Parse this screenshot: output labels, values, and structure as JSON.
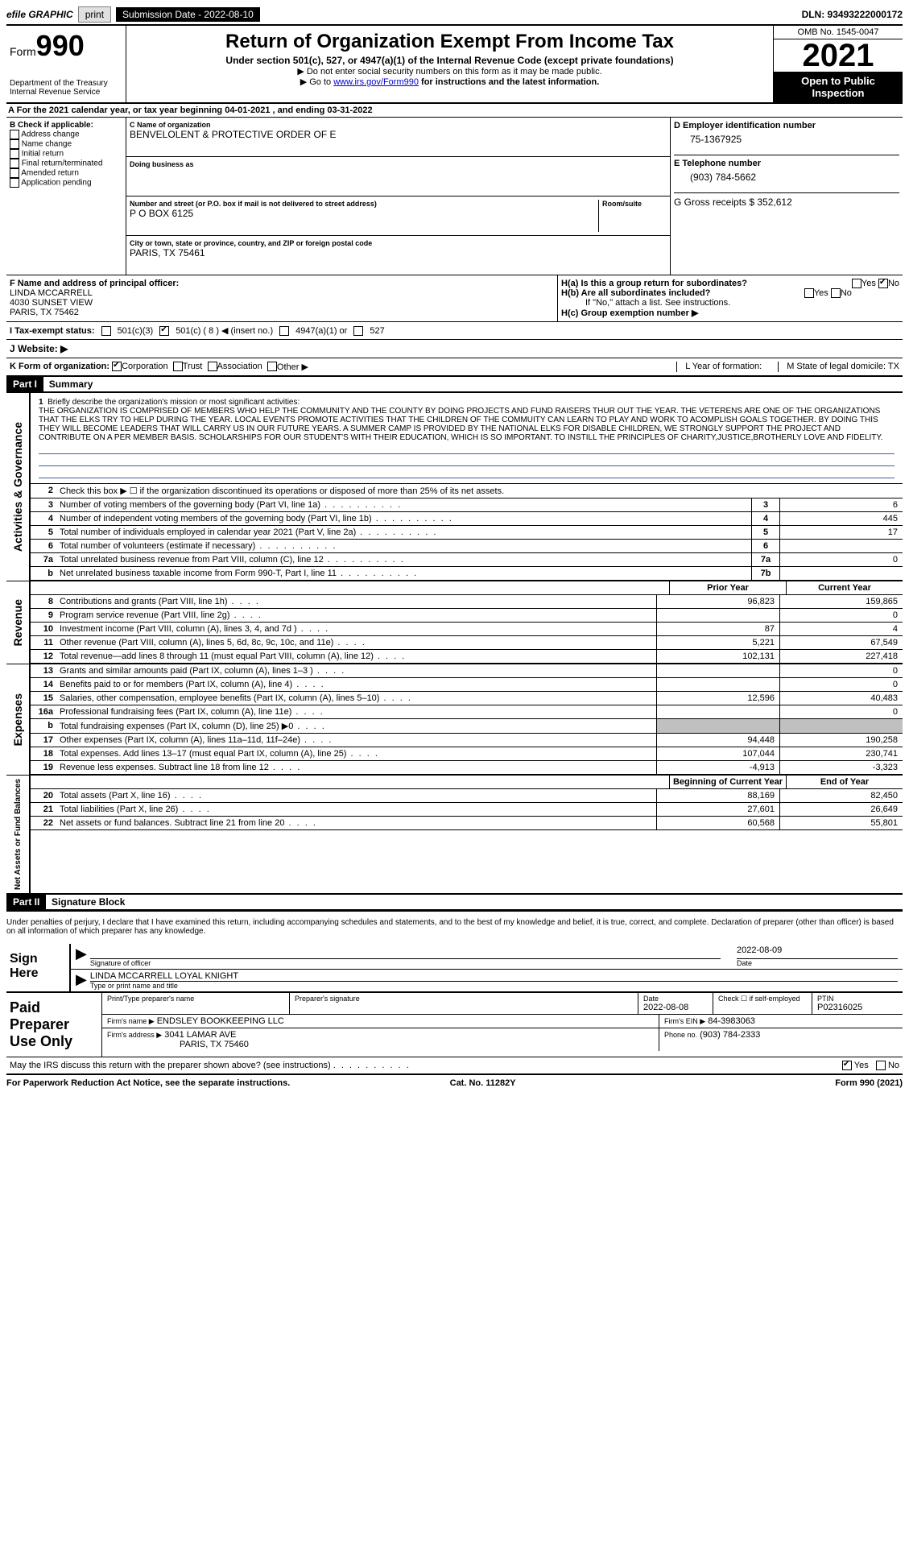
{
  "topbar": {
    "efile": "efile GRAPHIC",
    "print": "print",
    "subdate_label": "Submission Date - 2022-08-10",
    "dln": "DLN: 93493222000172"
  },
  "header": {
    "form_label": "Form",
    "form_num": "990",
    "dept": "Department of the Treasury",
    "irs": "Internal Revenue Service",
    "title": "Return of Organization Exempt From Income Tax",
    "sub": "Under section 501(c), 527, or 4947(a)(1) of the Internal Revenue Code (except private foundations)",
    "line1": "▶ Do not enter social security numbers on this form as it may be made public.",
    "line2_pre": "▶ Go to ",
    "line2_link": "www.irs.gov/Form990",
    "line2_post": " for instructions and the latest information.",
    "omb": "OMB No. 1545-0047",
    "year": "2021",
    "open": "Open to Public Inspection"
  },
  "rowA": "For the 2021 calendar year, or tax year beginning 04-01-2021   , and ending 03-31-2022",
  "colB": {
    "title": "B Check if applicable:",
    "opts": [
      "Address change",
      "Name change",
      "Initial return",
      "Final return/terminated",
      "Amended return",
      "Application pending"
    ]
  },
  "colC": {
    "name_label": "C Name of organization",
    "name": "BENVELOLENT & PROTECTIVE ORDER OF E",
    "dba_label": "Doing business as",
    "addr_label": "Number and street (or P.O. box if mail is not delivered to street address)",
    "room_label": "Room/suite",
    "addr": "P O BOX 6125",
    "city_label": "City or town, state or province, country, and ZIP or foreign postal code",
    "city": "PARIS, TX  75461"
  },
  "colD": {
    "d_label": "D Employer identification number",
    "ein": "75-1367925",
    "e_label": "E Telephone number",
    "phone": "(903) 784-5662",
    "g_label": "G Gross receipts $ 352,612"
  },
  "rowF": {
    "f_label": "F  Name and address of principal officer:",
    "name": "LINDA MCCARRELL",
    "addr1": "4030 SUNSET VIEW",
    "addr2": "PARIS, TX  75462"
  },
  "rowH": {
    "ha": "H(a)  Is this a group return for subordinates?",
    "hb": "H(b)  Are all subordinates included?",
    "hb_note": "If \"No,\" attach a list. See instructions.",
    "hc": "H(c)  Group exemption number ▶",
    "yes": "Yes",
    "no": "No"
  },
  "rowI": {
    "label": "I  Tax-exempt status:",
    "opt1": "501(c)(3)",
    "opt2": "501(c) ( 8 ) ◀ (insert no.)",
    "opt3": "4947(a)(1) or",
    "opt4": "527"
  },
  "rowJ": {
    "label": "J  Website: ▶"
  },
  "rowK": {
    "label": "K Form of organization:",
    "corp": "Corporation",
    "trust": "Trust",
    "assoc": "Association",
    "other": "Other ▶",
    "l_label": "L Year of formation:",
    "m_label": "M State of legal domicile: TX"
  },
  "part1": {
    "header": "Part I",
    "title": "Summary",
    "q1_label": "1",
    "q1_text": "Briefly describe the organization's mission or most significant activities:",
    "mission": "THE ORGANIZATION IS COMPRISED OF MEMBERS WHO HELP THE COMMUNITY AND THE COUNTY BY DOING PROJECTS AND FUND RAISERS THUR OUT THE YEAR. THE VETERENS ARE ONE OF THE ORGANIZATIONS THAT THE ELKS TRY TO HELP DURING THE YEAR. LOCAL EVENTS PROMOTE ACTIVITIES THAT THE CHILDREN OF THE COMMUITY CAN LEARN TO PLAY AND WORK TO ACOMPLISH GOALS TOGETHER. BY DOING THIS THEY WILL BECOME LEADERS THAT WILL CARRY US IN OUR FUTURE YEARS. A SUMMER CAMP IS PROVIDED BY THE NATIONAL ELKS FOR DISABLE CHILDREN, WE STRONGLY SUPPORT THE PROJECT AND CONTRIBUTE ON A PER MEMBER BASIS. SCHOLARSHIPS FOR OUR STUDENT'S WITH THEIR EDUCATION, WHICH IS SO IMPORTANT. TO INSTILL THE PRINCIPLES OF CHARITY,JUSTICE,BROTHERLY LOVE AND FIDELITY.",
    "side_ag": "Activities & Governance",
    "side_rev": "Revenue",
    "side_exp": "Expenses",
    "side_net": "Net Assets or Fund Balances",
    "q2": "Check this box ▶ ☐  if the organization discontinued its operations or disposed of more than 25% of its net assets.",
    "rows_ag": [
      {
        "n": "3",
        "d": "Number of voting members of the governing body (Part VI, line 1a)",
        "box": "3",
        "v": "6"
      },
      {
        "n": "4",
        "d": "Number of independent voting members of the governing body (Part VI, line 1b)",
        "box": "4",
        "v": "445"
      },
      {
        "n": "5",
        "d": "Total number of individuals employed in calendar year 2021 (Part V, line 2a)",
        "box": "5",
        "v": "17"
      },
      {
        "n": "6",
        "d": "Total number of volunteers (estimate if necessary)",
        "box": "6",
        "v": ""
      },
      {
        "n": "7a",
        "d": "Total unrelated business revenue from Part VIII, column (C), line 12",
        "box": "7a",
        "v": "0"
      },
      {
        "n": "b",
        "d": "Net unrelated business taxable income from Form 990-T, Part I, line 11",
        "box": "7b",
        "v": ""
      }
    ],
    "col_prior": "Prior Year",
    "col_current": "Current Year",
    "rows_rev": [
      {
        "n": "8",
        "d": "Contributions and grants (Part VIII, line 1h)",
        "p": "96,823",
        "c": "159,865"
      },
      {
        "n": "9",
        "d": "Program service revenue (Part VIII, line 2g)",
        "p": "",
        "c": "0"
      },
      {
        "n": "10",
        "d": "Investment income (Part VIII, column (A), lines 3, 4, and 7d )",
        "p": "87",
        "c": "4"
      },
      {
        "n": "11",
        "d": "Other revenue (Part VIII, column (A), lines 5, 6d, 8c, 9c, 10c, and 11e)",
        "p": "5,221",
        "c": "67,549"
      },
      {
        "n": "12",
        "d": "Total revenue—add lines 8 through 11 (must equal Part VIII, column (A), line 12)",
        "p": "102,131",
        "c": "227,418"
      }
    ],
    "rows_exp": [
      {
        "n": "13",
        "d": "Grants and similar amounts paid (Part IX, column (A), lines 1–3 )",
        "p": "",
        "c": "0"
      },
      {
        "n": "14",
        "d": "Benefits paid to or for members (Part IX, column (A), line 4)",
        "p": "",
        "c": "0"
      },
      {
        "n": "15",
        "d": "Salaries, other compensation, employee benefits (Part IX, column (A), lines 5–10)",
        "p": "12,596",
        "c": "40,483"
      },
      {
        "n": "16a",
        "d": "Professional fundraising fees (Part IX, column (A), line 11e)",
        "p": "",
        "c": "0"
      },
      {
        "n": "b",
        "d": "Total fundraising expenses (Part IX, column (D), line 25) ▶0",
        "p": "grey",
        "c": "grey"
      },
      {
        "n": "17",
        "d": "Other expenses (Part IX, column (A), lines 11a–11d, 11f–24e)",
        "p": "94,448",
        "c": "190,258"
      },
      {
        "n": "18",
        "d": "Total expenses. Add lines 13–17 (must equal Part IX, column (A), line 25)",
        "p": "107,044",
        "c": "230,741"
      },
      {
        "n": "19",
        "d": "Revenue less expenses. Subtract line 18 from line 12",
        "p": "-4,913",
        "c": "-3,323"
      }
    ],
    "col_begin": "Beginning of Current Year",
    "col_end": "End of Year",
    "rows_net": [
      {
        "n": "20",
        "d": "Total assets (Part X, line 16)",
        "p": "88,169",
        "c": "82,450"
      },
      {
        "n": "21",
        "d": "Total liabilities (Part X, line 26)",
        "p": "27,601",
        "c": "26,649"
      },
      {
        "n": "22",
        "d": "Net assets or fund balances. Subtract line 21 from line 20",
        "p": "60,568",
        "c": "55,801"
      }
    ]
  },
  "part2": {
    "header": "Part II",
    "title": "Signature Block",
    "decl": "Under penalties of perjury, I declare that I have examined this return, including accompanying schedules and statements, and to the best of my knowledge and belief, it is true, correct, and complete. Declaration of preparer (other than officer) is based on all information of which preparer has any knowledge.",
    "sign_here": "Sign Here",
    "sig_officer": "Signature of officer",
    "sig_date": "2022-08-09",
    "date_label": "Date",
    "name_title": "LINDA MCCARRELL  LOYAL KNIGHT",
    "type_label": "Type or print name and title",
    "paid": "Paid Preparer Use Only",
    "prep_name_label": "Print/Type preparer's name",
    "prep_sig_label": "Preparer's signature",
    "prep_date_label": "Date",
    "prep_date": "2022-08-08",
    "check_label": "Check ☐ if self-employed",
    "ptin_label": "PTIN",
    "ptin": "P02316025",
    "firm_name_label": "Firm's name    ▶",
    "firm_name": "ENDSLEY BOOKKEEPING LLC",
    "firm_ein_label": "Firm's EIN ▶",
    "firm_ein": "84-3983063",
    "firm_addr_label": "Firm's address ▶",
    "firm_addr": "3041 LAMAR AVE",
    "firm_city": "PARIS, TX  75460",
    "phone_label": "Phone no.",
    "phone": "(903) 784-2333",
    "discuss": "May the IRS discuss this return with the preparer shown above? (see instructions)",
    "yes": "Yes",
    "no": "No"
  },
  "footer": {
    "left": "For Paperwork Reduction Act Notice, see the separate instructions.",
    "mid": "Cat. No. 11282Y",
    "right": "Form 990 (2021)"
  }
}
